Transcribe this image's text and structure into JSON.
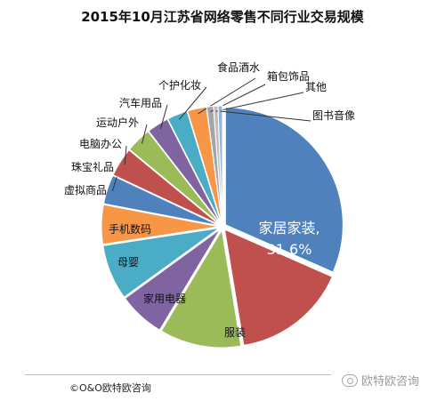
{
  "chart_data": {
    "type": "pie",
    "title": "2015年10月江苏省网络零售不同行业交易规模",
    "slices": [
      {
        "label": "家居家装",
        "value": 31.6,
        "color": "#4f81bd",
        "data_label": "31.6%"
      },
      {
        "label": "服装",
        "value": 15.8,
        "color": "#c0504d"
      },
      {
        "label": "家用电器",
        "value": 11.2,
        "color": "#9bbb59"
      },
      {
        "label": "母婴",
        "value": 6.4,
        "color": "#8064a2"
      },
      {
        "label": "手机数码",
        "value": 7.6,
        "color": "#4bacc6"
      },
      {
        "label": "虚拟商品",
        "value": 5.4,
        "color": "#f79646"
      },
      {
        "label": "珠宝礼品",
        "value": 4.0,
        "color": "#4f81bd"
      },
      {
        "label": "电脑办公",
        "value": 4.0,
        "color": "#c0504d"
      },
      {
        "label": "运动户外",
        "value": 3.5,
        "color": "#9bbb59"
      },
      {
        "label": "汽车用品",
        "value": 3.0,
        "color": "#8064a2"
      },
      {
        "label": "个护化妆",
        "value": 2.8,
        "color": "#4bacc6"
      },
      {
        "label": "食品酒水",
        "value": 2.6,
        "color": "#f79646"
      },
      {
        "label": "箱包饰品",
        "value": 0.9,
        "color": "#a5a5a5"
      },
      {
        "label": "其他",
        "value": 0.6,
        "color": "#bfbfbf"
      },
      {
        "label": "图书音像",
        "value": 0.6,
        "color": "#95b3d7"
      }
    ]
  },
  "footer": {
    "credit": "©O&O欧特欧咨询",
    "watermark": "欧特欧咨询"
  }
}
